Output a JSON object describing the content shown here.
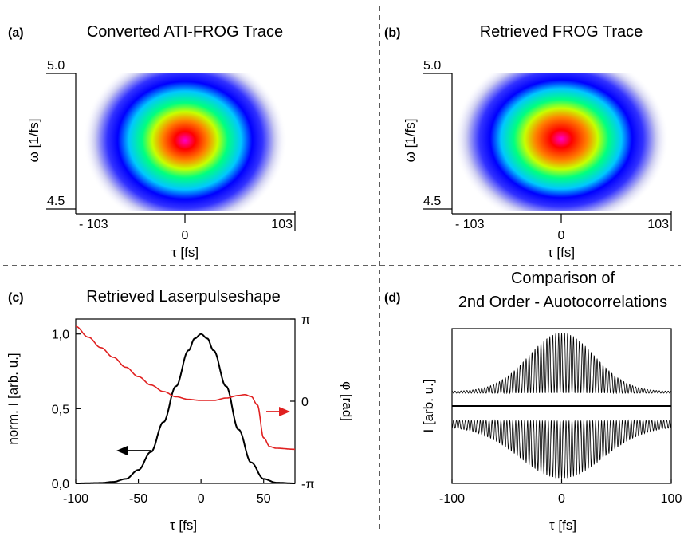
{
  "chart_data": [
    {
      "panel": "(a)",
      "type": "heatmap",
      "title": "Converted ATI-FROG Trace",
      "xlabel": "τ [fs]",
      "ylabel": "ω [1/fs]",
      "xticks": [
        "- 103",
        "0",
        "103"
      ],
      "yticks": [
        "5.0",
        "4.5"
      ],
      "xlim": [
        -103,
        103
      ],
      "ylim": [
        4.5,
        5.0
      ],
      "peak": {
        "x": 0,
        "y": 4.72
      },
      "colormap": [
        "#ffffff",
        "#c8c8f0",
        "#3232ff",
        "#0000ff",
        "#00c8ff",
        "#00ff80",
        "#c8ff00",
        "#ff8000",
        "#ff0000",
        "#ff00c8"
      ]
    },
    {
      "panel": "(b)",
      "type": "heatmap",
      "title": "Retrieved FROG Trace",
      "xlabel": "τ [fs]",
      "ylabel": "ω [1/fs]",
      "xticks": [
        "- 103",
        "0",
        "103"
      ],
      "yticks": [
        "5.0",
        "4.5"
      ],
      "xlim": [
        -103,
        103
      ],
      "ylim": [
        4.5,
        5.0
      ],
      "peak": {
        "x": 0,
        "y": 4.72
      },
      "colormap": [
        "#ffffff",
        "#c8c8f0",
        "#3232ff",
        "#0000ff",
        "#00c8ff",
        "#00ff80",
        "#c8ff00",
        "#ff8000",
        "#ff0000",
        "#ff00c8"
      ]
    },
    {
      "panel": "(c)",
      "type": "line",
      "title": "Retrieved Laserpulseshape",
      "xlabel": "τ [fs]",
      "ylabel": "norm. I [arb. u.]",
      "ylabel_right": "φ [rad]",
      "xlim": [
        -100,
        75
      ],
      "ylim": [
        0,
        1.1
      ],
      "ylim_right": [
        -3.1416,
        3.1416
      ],
      "xticks": [
        "-100",
        "-50",
        "0",
        "50"
      ],
      "yticks": [
        "0,0",
        "0,5",
        "1,0"
      ],
      "yticks_right": [
        "-π",
        "0",
        "π"
      ],
      "series": [
        {
          "color": "#000000",
          "axis": "left",
          "x": [
            -100,
            -80,
            -70,
            -60,
            -50,
            -40,
            -30,
            -20,
            -10,
            -5,
            0,
            5,
            10,
            20,
            30,
            40,
            50,
            60,
            75
          ],
          "values": [
            0,
            0.003,
            0.01,
            0.03,
            0.09,
            0.21,
            0.41,
            0.65,
            0.89,
            0.97,
            1.0,
            0.97,
            0.89,
            0.65,
            0.36,
            0.14,
            0.03,
            0.005,
            0
          ]
        },
        {
          "color": "#e02020",
          "axis": "right",
          "x": [
            -100,
            -90,
            -80,
            -70,
            -60,
            -50,
            -40,
            -30,
            -20,
            -10,
            0,
            10,
            20,
            30,
            35,
            40,
            45,
            50,
            55,
            60,
            75
          ],
          "values": [
            2.86,
            2.45,
            2.05,
            1.68,
            1.3,
            0.94,
            0.62,
            0.37,
            0.17,
            0.07,
            0.03,
            0.03,
            0.12,
            0.22,
            0.25,
            0.18,
            -0.14,
            -1.4,
            -1.74,
            -1.8,
            -1.84
          ]
        }
      ]
    },
    {
      "panel": "(d)",
      "type": "line",
      "title": "Comparison of\n2nd Order - Auotocorrelations",
      "title_lines": [
        "Comparison of",
        "2nd Order - Auotocorrelations"
      ],
      "xlabel": "τ [fs]",
      "ylabel": "I [arb. u.]",
      "xlim": [
        -100,
        100
      ],
      "xticks": [
        "-100",
        "0",
        "100"
      ],
      "traces": [
        {
          "position": "upper",
          "direction": "up",
          "envelope_width_fs": 30,
          "baseline_ripple": 0.03,
          "fringe_period_fs": 2.7
        },
        {
          "position": "lower",
          "direction": "down",
          "envelope_width_fs": 38,
          "baseline_ripple": 0.1,
          "fringe_period_fs": 2.7
        }
      ]
    }
  ]
}
